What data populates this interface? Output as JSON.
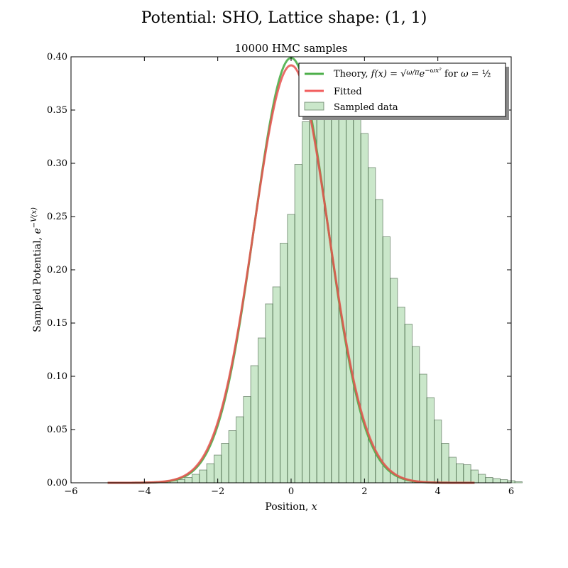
{
  "page": {
    "suptitle": "Potential: SHO, Lattice shape: (1, 1)"
  },
  "chart_data": {
    "type": "bar",
    "title": "10000 HMC samples",
    "xlabel": "Position, x",
    "ylabel": "Sampled Potential, e^{-V(x)}",
    "xlim": [
      -6,
      6
    ],
    "ylim": [
      0,
      0.4
    ],
    "xticks": [
      -6,
      -4,
      -2,
      0,
      2,
      4,
      6
    ],
    "xtick_labels": [
      "−6",
      "−4",
      "−2",
      "0",
      "2",
      "4",
      "6"
    ],
    "yticks": [
      0,
      0.05,
      0.1,
      0.15,
      0.2,
      0.25,
      0.3,
      0.35,
      0.4
    ],
    "ytick_labels": [
      "0.00",
      "0.05",
      "0.10",
      "0.15",
      "0.20",
      "0.25",
      "0.30",
      "0.35",
      "0.40"
    ],
    "grid": false,
    "legend_position": "top-right",
    "histogram": {
      "name": "Sampled data",
      "color": "#2ca02c",
      "bin_start": -3.7,
      "bin_width": 0.2,
      "values": [
        0.0005,
        0.001,
        0.002,
        0.003,
        0.005,
        0.008,
        0.012,
        0.018,
        0.026,
        0.037,
        0.049,
        0.062,
        0.081,
        0.11,
        0.136,
        0.168,
        0.184,
        0.225,
        0.252,
        0.299,
        0.339,
        0.352,
        0.382,
        0.382,
        0.374,
        0.388,
        0.374,
        0.352,
        0.328,
        0.296,
        0.266,
        0.231,
        0.192,
        0.165,
        0.149,
        0.128,
        0.102,
        0.08,
        0.059,
        0.037,
        0.024,
        0.018,
        0.017,
        0.012,
        0.008,
        0.005,
        0.004,
        0.003,
        0.002,
        0.001
      ]
    },
    "series": [
      {
        "name": "Theory",
        "kind": "curve",
        "omega": 0.5,
        "x_range": [
          -5,
          5
        ],
        "color": "#4daf4a"
      },
      {
        "name": "Fitted",
        "kind": "curve",
        "peak": 0.392,
        "x_range": [
          -5,
          5
        ],
        "color": "#e41a1c"
      }
    ],
    "legend": {
      "theory_label": "Theory, f(x) = √(ω/π) e^{−ωx²} for ω = ½",
      "fitted_label": "Fitted",
      "sampled_label": "Sampled data"
    }
  }
}
